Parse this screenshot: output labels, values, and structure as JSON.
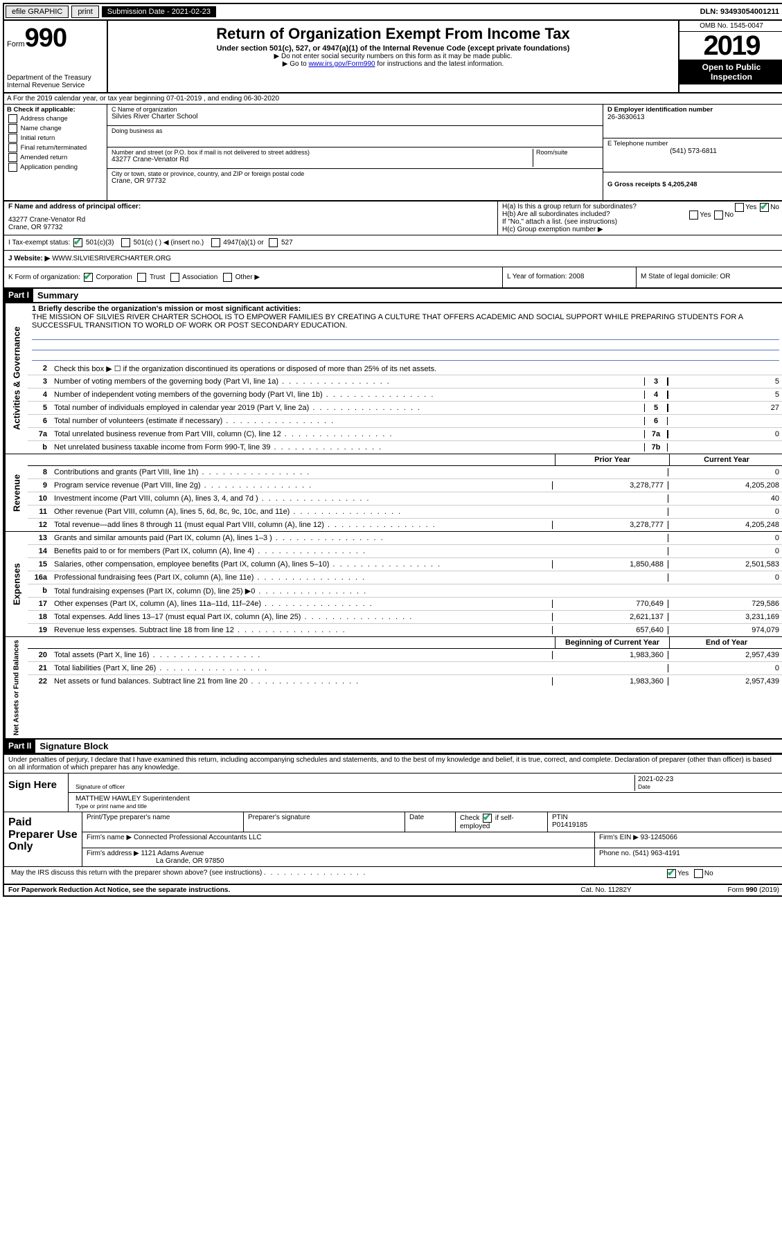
{
  "topbar": {
    "efile": "efile GRAPHIC",
    "print": "print",
    "submission_label": "Submission Date - 2021-02-23",
    "dln": "DLN: 93493054001211"
  },
  "header": {
    "form_prefix": "Form",
    "form_number": "990",
    "dept": "Department of the Treasury",
    "irs": "Internal Revenue Service",
    "title": "Return of Organization Exempt From Income Tax",
    "subtitle": "Under section 501(c), 527, or 4947(a)(1) of the Internal Revenue Code (except private foundations)",
    "line2": "▶ Do not enter social security numbers on this form as it may be made public.",
    "line3_pre": "▶ Go to ",
    "line3_link": "www.irs.gov/Form990",
    "line3_post": " for instructions and the latest information.",
    "omb": "OMB No. 1545-0047",
    "year": "2019",
    "inspect1": "Open to Public",
    "inspect2": "Inspection"
  },
  "row_a": "A For the 2019 calendar year, or tax year beginning 07-01-2019   , and ending 06-30-2020",
  "col_b": {
    "title": "B Check if applicable:",
    "items": [
      "Address change",
      "Name change",
      "Initial return",
      "Final return/terminated",
      "Amended return",
      "Application pending"
    ]
  },
  "col_c": {
    "name_label": "C Name of organization",
    "name": "Silvies River Charter School",
    "dba_label": "Doing business as",
    "dba": "",
    "addr_label": "Number and street (or P.O. box if mail is not delivered to street address)",
    "room_label": "Room/suite",
    "addr": "43277 Crane-Venator Rd",
    "city_label": "City or town, state or province, country, and ZIP or foreign postal code",
    "city": "Crane, OR  97732"
  },
  "col_d": {
    "ein_label": "D Employer identification number",
    "ein": "26-3630613",
    "phone_label": "E Telephone number",
    "phone": "(541) 573-6811",
    "gross_label": "G Gross receipts $ 4,205,248"
  },
  "f": {
    "label": "F  Name and address of principal officer:",
    "addr1": "43277 Crane-Venator Rd",
    "addr2": "Crane, OR  97732"
  },
  "h": {
    "a": "H(a)  Is this a group return for subordinates?",
    "a_yes": "Yes",
    "a_no_checked": true,
    "a_no": "No",
    "b": "H(b)  Are all subordinates included?",
    "b_yes": "Yes",
    "b_no": "No",
    "note": "If \"No,\" attach a list. (see instructions)",
    "c": "H(c)  Group exemption number ▶"
  },
  "tax": {
    "label": "I   Tax-exempt status:",
    "opt1": "501(c)(3)",
    "opt2": "501(c) (   ) ◀ (insert no.)",
    "opt3": "4947(a)(1) or",
    "opt4": "527",
    "opt1_checked": true
  },
  "j": {
    "label": "J   Website: ▶",
    "value": "WWW.SILVIESRIVERCHARTER.ORG"
  },
  "k": {
    "label": "K Form of organization:",
    "corp": "Corporation",
    "trust": "Trust",
    "assoc": "Association",
    "other": "Other ▶",
    "corp_checked": true,
    "l": "L Year of formation: 2008",
    "m": "M State of legal domicile: OR"
  },
  "part1": {
    "hdr": "Part I",
    "title": "Summary",
    "line1_label": "1  Briefly describe the organization's mission or most significant activities:",
    "mission": "THE MISSION OF SILVIES RIVER CHARTER SCHOOL IS TO EMPOWER FAMILIES BY CREATING A CULTURE THAT OFFERS ACADEMIC AND SOCIAL SUPPORT WHILE PREPARING STUDENTS FOR A SUCCESSFUL TRANSITION TO WORLD OF WORK OR POST SECONDARY EDUCATION.",
    "line2": "Check this box ▶ ☐  if the organization discontinued its operations or disposed of more than 25% of its net assets.",
    "lines_gov": [
      {
        "n": "3",
        "d": "Number of voting members of the governing body (Part VI, line 1a)",
        "box": "3",
        "v": "5"
      },
      {
        "n": "4",
        "d": "Number of independent voting members of the governing body (Part VI, line 1b)",
        "box": "4",
        "v": "5"
      },
      {
        "n": "5",
        "d": "Total number of individuals employed in calendar year 2019 (Part V, line 2a)",
        "box": "5",
        "v": "27"
      },
      {
        "n": "6",
        "d": "Total number of volunteers (estimate if necessary)",
        "box": "6",
        "v": ""
      },
      {
        "n": "7a",
        "d": "Total unrelated business revenue from Part VIII, column (C), line 12",
        "box": "7a",
        "v": "0"
      },
      {
        "n": "b",
        "d": "Net unrelated business taxable income from Form 990-T, line 39",
        "box": "7b",
        "v": ""
      }
    ],
    "prior_hdr": "Prior Year",
    "current_hdr": "Current Year",
    "lines_rev": [
      {
        "n": "8",
        "d": "Contributions and grants (Part VIII, line 1h)",
        "p": "",
        "c": "0"
      },
      {
        "n": "9",
        "d": "Program service revenue (Part VIII, line 2g)",
        "p": "3,278,777",
        "c": "4,205,208"
      },
      {
        "n": "10",
        "d": "Investment income (Part VIII, column (A), lines 3, 4, and 7d )",
        "p": "",
        "c": "40"
      },
      {
        "n": "11",
        "d": "Other revenue (Part VIII, column (A), lines 5, 6d, 8c, 9c, 10c, and 11e)",
        "p": "",
        "c": "0"
      },
      {
        "n": "12",
        "d": "Total revenue—add lines 8 through 11 (must equal Part VIII, column (A), line 12)",
        "p": "3,278,777",
        "c": "4,205,248"
      }
    ],
    "lines_exp": [
      {
        "n": "13",
        "d": "Grants and similar amounts paid (Part IX, column (A), lines 1–3 )",
        "p": "",
        "c": "0"
      },
      {
        "n": "14",
        "d": "Benefits paid to or for members (Part IX, column (A), line 4)",
        "p": "",
        "c": "0"
      },
      {
        "n": "15",
        "d": "Salaries, other compensation, employee benefits (Part IX, column (A), lines 5–10)",
        "p": "1,850,488",
        "c": "2,501,583"
      },
      {
        "n": "16a",
        "d": "Professional fundraising fees (Part IX, column (A), line 11e)",
        "p": "",
        "c": "0"
      },
      {
        "n": "b",
        "d": "Total fundraising expenses (Part IX, column (D), line 25) ▶0",
        "p": "shaded",
        "c": "shaded"
      },
      {
        "n": "17",
        "d": "Other expenses (Part IX, column (A), lines 11a–11d, 11f–24e)",
        "p": "770,649",
        "c": "729,586"
      },
      {
        "n": "18",
        "d": "Total expenses. Add lines 13–17 (must equal Part IX, column (A), line 25)",
        "p": "2,621,137",
        "c": "3,231,169"
      },
      {
        "n": "19",
        "d": "Revenue less expenses. Subtract line 18 from line 12",
        "p": "657,640",
        "c": "974,079"
      }
    ],
    "boy_hdr": "Beginning of Current Year",
    "eoy_hdr": "End of Year",
    "lines_net": [
      {
        "n": "20",
        "d": "Total assets (Part X, line 16)",
        "p": "1,983,360",
        "c": "2,957,439"
      },
      {
        "n": "21",
        "d": "Total liabilities (Part X, line 26)",
        "p": "",
        "c": "0"
      },
      {
        "n": "22",
        "d": "Net assets or fund balances. Subtract line 21 from line 20",
        "p": "1,983,360",
        "c": "2,957,439"
      }
    ],
    "side_gov": "Activities & Governance",
    "side_rev": "Revenue",
    "side_exp": "Expenses",
    "side_net": "Net Assets or Fund Balances"
  },
  "part2": {
    "hdr": "Part II",
    "title": "Signature Block",
    "intro": "Under penalties of perjury, I declare that I have examined this return, including accompanying schedules and statements, and to the best of my knowledge and belief, it is true, correct, and complete. Declaration of preparer (other than officer) is based on all information of which preparer has any knowledge.",
    "sign_here": "Sign Here",
    "sig_officer": "Signature of officer",
    "sig_date": "2021-02-23",
    "date_label": "Date",
    "name_title": "MATTHEW HAWLEY Superintendent",
    "name_title_label": "Type or print name and title",
    "paid": "Paid Preparer Use Only",
    "p_name_label": "Print/Type preparer's name",
    "p_sig_label": "Preparer's signature",
    "p_date_label": "Date",
    "p_check_label": "Check",
    "p_self": "if self-employed",
    "p_check_checked": true,
    "ptin_label": "PTIN",
    "ptin": "P01419185",
    "firm_name_label": "Firm's name    ▶",
    "firm_name": "Connected Professional Accountants LLC",
    "firm_ein_label": "Firm's EIN ▶",
    "firm_ein": "93-1245066",
    "firm_addr_label": "Firm's address ▶",
    "firm_addr1": "1121 Adams Avenue",
    "firm_addr2": "La Grande, OR  97850",
    "firm_phone_label": "Phone no.",
    "firm_phone": "(541) 963-4191",
    "discuss": "May the IRS discuss this return with the preparer shown above? (see instructions)",
    "discuss_yes": "Yes",
    "discuss_no": "No",
    "discuss_yes_checked": true
  },
  "footer": {
    "left": "For Paperwork Reduction Act Notice, see the separate instructions.",
    "center": "Cat. No. 11282Y",
    "right": "Form 990 (2019)"
  }
}
